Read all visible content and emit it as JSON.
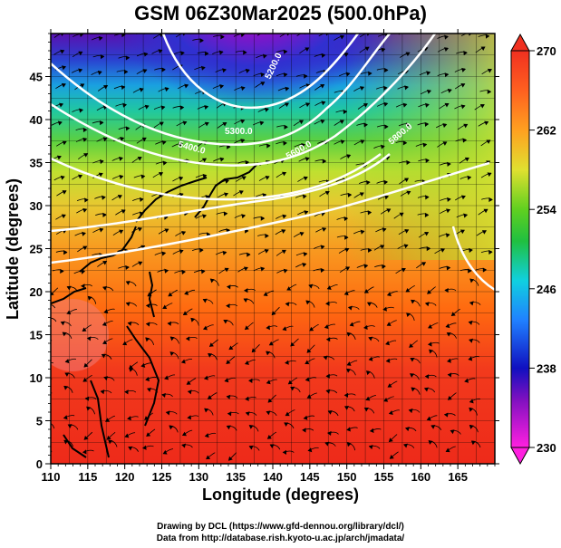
{
  "title": "GSM 06Z30Mar2025 (500.0hPa)",
  "map": {
    "xlabel": "Longitude (degrees)",
    "ylabel": "Latitude  (degrees)",
    "x_ticks": [
      "110",
      "115",
      "120",
      "125",
      "130",
      "135",
      "140",
      "145",
      "150",
      "155",
      "160",
      "165"
    ],
    "y_ticks": [
      "0",
      "5",
      "10",
      "15",
      "20",
      "25",
      "30",
      "35",
      "40",
      "45"
    ],
    "x_range": [
      110,
      170
    ],
    "y_range": [
      0,
      50
    ],
    "contour_labels": [
      "5200.0",
      "5300.0",
      "5400.0",
      "5600.0",
      "5800.0"
    ]
  },
  "colorbar": {
    "ticks": [
      "230",
      "238",
      "246",
      "254",
      "262",
      "270"
    ],
    "min": 230,
    "max": 270
  },
  "credits": {
    "line1": "Drawing by DCL (https://www.gfd-dennou.org/library/dcl/)",
    "line2": "Data from http://database.rish.kyoto-u.ac.jp/arch/jmadata/"
  }
}
